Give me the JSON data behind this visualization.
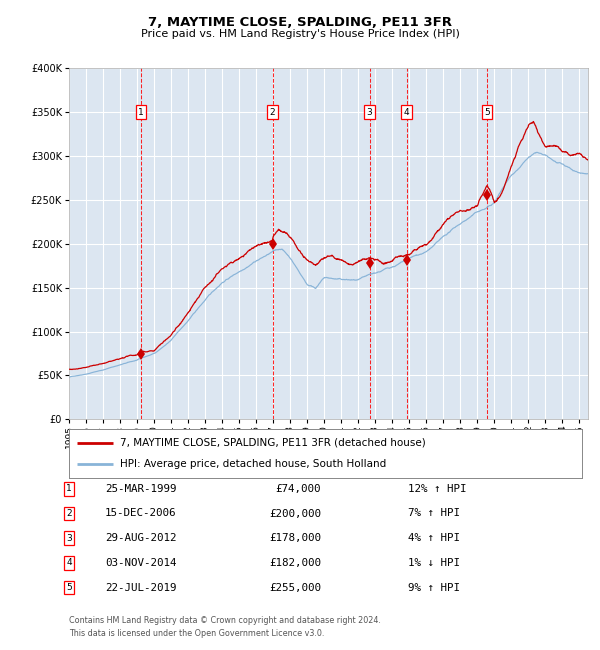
{
  "title": "7, MAYTIME CLOSE, SPALDING, PE11 3FR",
  "subtitle": "Price paid vs. HM Land Registry's House Price Index (HPI)",
  "footer_line1": "Contains HM Land Registry data © Crown copyright and database right 2024.",
  "footer_line2": "This data is licensed under the Open Government Licence v3.0.",
  "legend_label_red": "7, MAYTIME CLOSE, SPALDING, PE11 3FR (detached house)",
  "legend_label_blue": "HPI: Average price, detached house, South Holland",
  "fig_bg_color": "#ffffff",
  "plot_bg_color": "#dce6f1",
  "grid_color": "#ffffff",
  "red_line_color": "#cc0000",
  "blue_line_color": "#89b4d8",
  "sales": [
    {
      "label": "1",
      "date_str": "25-MAR-1999",
      "year": 1999.23,
      "price": 74000,
      "hpi_pct": "12% ↑ HPI"
    },
    {
      "label": "2",
      "date_str": "15-DEC-2006",
      "year": 2006.96,
      "price": 200000,
      "hpi_pct": "7% ↑ HPI"
    },
    {
      "label": "3",
      "date_str": "29-AUG-2012",
      "year": 2012.66,
      "price": 178000,
      "hpi_pct": "4% ↑ HPI"
    },
    {
      "label": "4",
      "date_str": "03-NOV-2014",
      "year": 2014.84,
      "price": 182000,
      "hpi_pct": "1% ↓ HPI"
    },
    {
      "label": "5",
      "date_str": "22-JUL-2019",
      "year": 2019.56,
      "price": 255000,
      "hpi_pct": "9% ↑ HPI"
    }
  ],
  "ylim": [
    0,
    400000
  ],
  "xlim_start": 1995.0,
  "xlim_end": 2025.5,
  "yticks": [
    0,
    50000,
    100000,
    150000,
    200000,
    250000,
    300000,
    350000,
    400000
  ],
  "ytick_labels": [
    "£0",
    "£50K",
    "£100K",
    "£150K",
    "£200K",
    "£250K",
    "£300K",
    "£350K",
    "£400K"
  ],
  "xticks": [
    1995,
    1996,
    1997,
    1998,
    1999,
    2000,
    2001,
    2002,
    2003,
    2004,
    2005,
    2006,
    2007,
    2008,
    2009,
    2010,
    2011,
    2012,
    2013,
    2014,
    2015,
    2016,
    2017,
    2018,
    2019,
    2020,
    2021,
    2022,
    2023,
    2024,
    2025
  ],
  "noise_seed": 42,
  "steps_per_year": 52
}
